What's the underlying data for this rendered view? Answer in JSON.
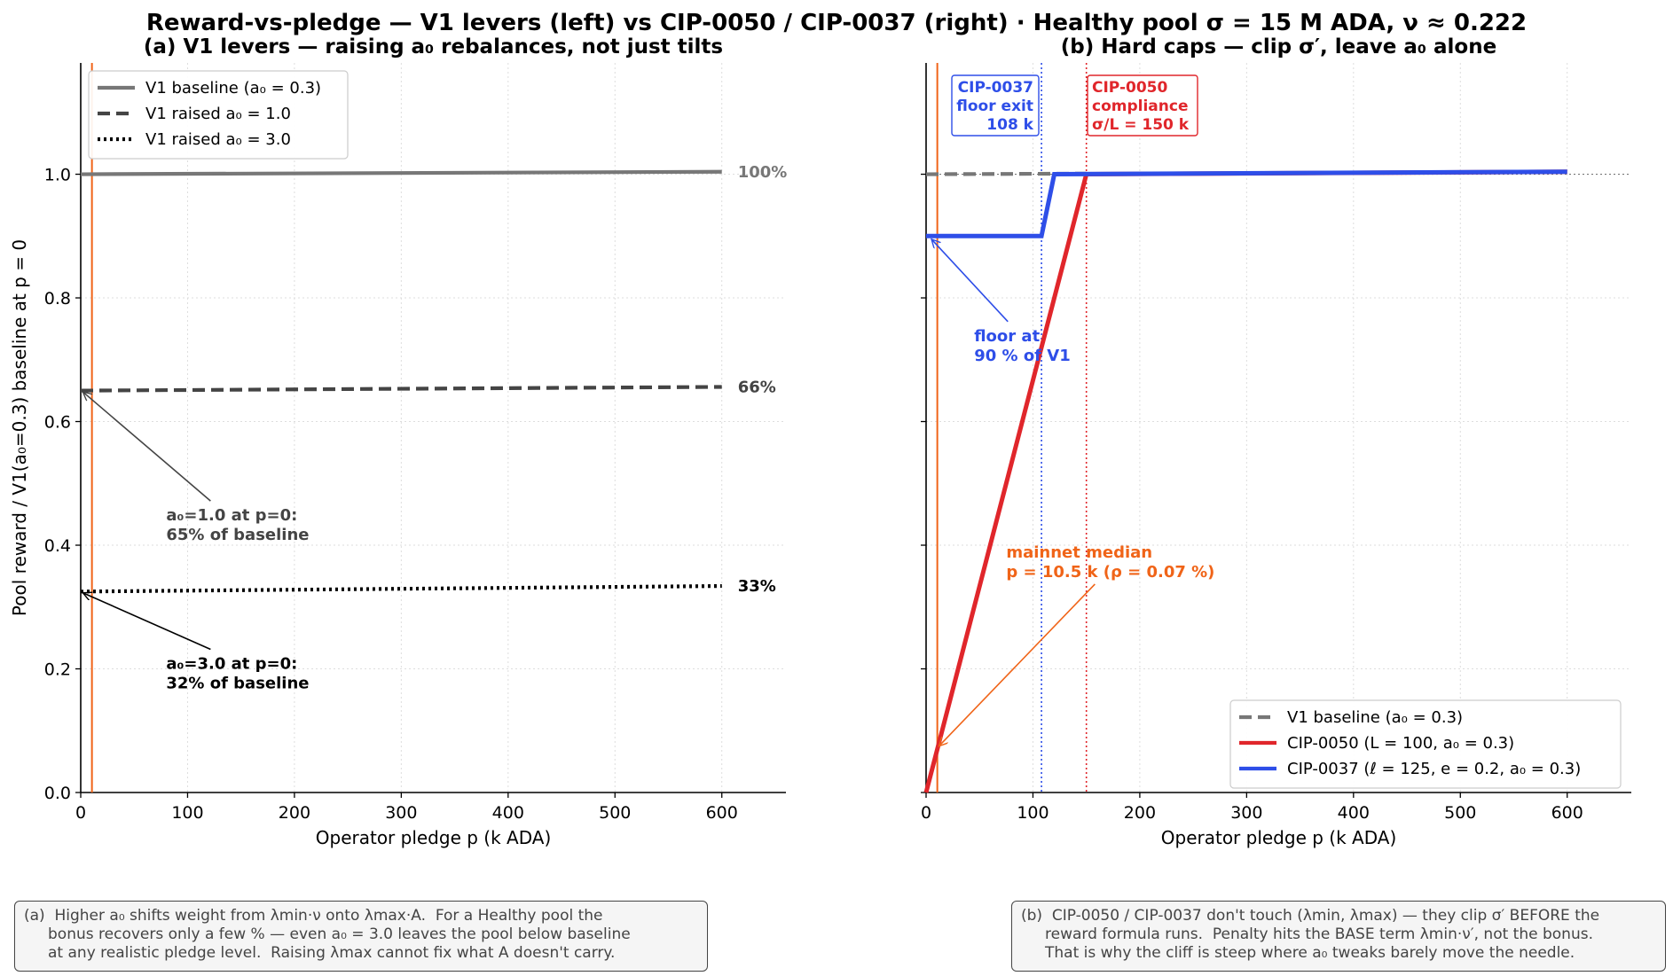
{
  "figure": {
    "suptitle": "Reward-vs-pledge — V1 levers (left) vs CIP-0050 / CIP-0037 (right)   ·   Healthy pool σ = 15 M ADA, ν ≈ 0.222"
  },
  "colors": {
    "grey": "#777777",
    "dark": "#444444",
    "black": "#000000",
    "red": "#e0262b",
    "blue": "#2e4ee8",
    "orange": "#f06418"
  },
  "chart_data": [
    {
      "type": "line",
      "title": "(a) V1 levers — raising a₀ rebalances, not just tilts",
      "xlabel": "Operator pledge  p  (k ADA)",
      "ylabel": "Pool reward  /  V1(a₀=0.3) baseline at p = 0",
      "xlim": [
        0,
        660
      ],
      "ylim": [
        0,
        1.18
      ],
      "xticks": [
        0,
        100,
        200,
        300,
        400,
        500,
        600
      ],
      "yticks": [
        "0.0",
        "0.2",
        "0.4",
        "0.6",
        "0.8",
        "1.0"
      ],
      "grid": true,
      "legend_position": "top-left",
      "series": [
        {
          "name": "V1 baseline  (a₀ = 0.3)",
          "style": "solid",
          "color": "#777777",
          "x": [
            0,
            600
          ],
          "y": [
            1.0,
            1.004
          ],
          "end_label": "100%"
        },
        {
          "name": "V1 raised  a₀ = 1.0",
          "style": "dashed",
          "color": "#444444",
          "x": [
            0,
            600
          ],
          "y": [
            0.65,
            0.656
          ],
          "end_label": "66%"
        },
        {
          "name": "V1 raised  a₀ = 3.0",
          "style": "dotted",
          "color": "#000000",
          "x": [
            0,
            600
          ],
          "y": [
            0.325,
            0.334
          ],
          "end_label": "33%"
        }
      ],
      "vline": {
        "x": 10.5,
        "color": "#f06418"
      },
      "annotations": [
        {
          "lines": [
            "a₀=1.0 at p=0:",
            "65% of baseline"
          ],
          "color": "#444444",
          "text_at": [
            80,
            0.44
          ],
          "arrow_to": [
            2,
            0.648
          ]
        },
        {
          "lines": [
            "a₀=3.0 at p=0:",
            "32% of baseline"
          ],
          "color": "#000000",
          "text_at": [
            80,
            0.2
          ],
          "arrow_to": [
            2,
            0.323
          ]
        }
      ]
    },
    {
      "type": "line",
      "title": "(b) Hard caps — clip σ′, leave a₀ alone",
      "xlabel": "Operator pledge  p  (k ADA)",
      "xlim": [
        0,
        660
      ],
      "ylim": [
        0,
        1.18
      ],
      "xticks": [
        0,
        100,
        200,
        300,
        400,
        500,
        600
      ],
      "grid": true,
      "legend_position": "lower-right",
      "series": [
        {
          "name": "V1 baseline  (a₀ = 0.3)",
          "style": "dashed",
          "color": "#777777",
          "x": [
            0,
            150
          ],
          "y": [
            1.0,
            1.001
          ]
        },
        {
          "name": "CIP-0050  (L = 100, a₀ = 0.3)",
          "style": "solid",
          "color": "#e0262b",
          "x": [
            0,
            150,
            600
          ],
          "y": [
            0.0,
            1.0,
            1.004
          ]
        },
        {
          "name": "CIP-0037  (ℓ = 125, e = 0.2, a₀ = 0.3)",
          "style": "solid",
          "color": "#2e4ee8",
          "x": [
            0,
            108,
            120,
            600
          ],
          "y": [
            0.9,
            0.9,
            1.0,
            1.004
          ]
        }
      ],
      "reference_line": {
        "y": 1.0,
        "style": "dotted",
        "color": "#777777"
      },
      "vlines": [
        {
          "x": 10.5,
          "color": "#f06418",
          "style": "solid"
        },
        {
          "x": 108,
          "color": "#2e4ee8",
          "style": "dotted"
        },
        {
          "x": 150,
          "color": "#e0262b",
          "style": "dotted"
        }
      ],
      "boxes": [
        {
          "lines": [
            "CIP-0037",
            "floor exit",
            "108 k"
          ],
          "color": "#2e4ee8",
          "align": "right"
        },
        {
          "lines": [
            "CIP-0050",
            "compliance",
            "σ/L = 150 k"
          ],
          "color": "#e0262b",
          "align": "left"
        }
      ],
      "annotations": [
        {
          "lines": [
            "floor at",
            "90 % of V1"
          ],
          "color": "#2e4ee8",
          "text_at": [
            45,
            0.73
          ],
          "arrow_to": [
            5,
            0.895
          ]
        },
        {
          "lines": [
            "mainnet median",
            "p = 10.5 k  (ρ = 0.07 %)"
          ],
          "color": "#f06418",
          "text_at": [
            75,
            0.38
          ],
          "arrow_to": [
            12,
            0.075
          ]
        }
      ]
    }
  ],
  "captions": {
    "left": "(a)  Higher a₀ shifts weight from λmin·ν onto λmax·A.  For a Healthy pool the\n     bonus recovers only a few % — even a₀ = 3.0 leaves the pool below baseline\n     at any realistic pledge level.  Raising λmax cannot fix what A doesn't carry.",
    "right": "(b)  CIP-0050 / CIP-0037 don't touch (λmin, λmax) — they clip σ′ BEFORE the\n     reward formula runs.  Penalty hits the BASE term λmin·ν′, not the bonus.\n     That is why the cliff is steep where a₀ tweaks barely move the needle."
  }
}
